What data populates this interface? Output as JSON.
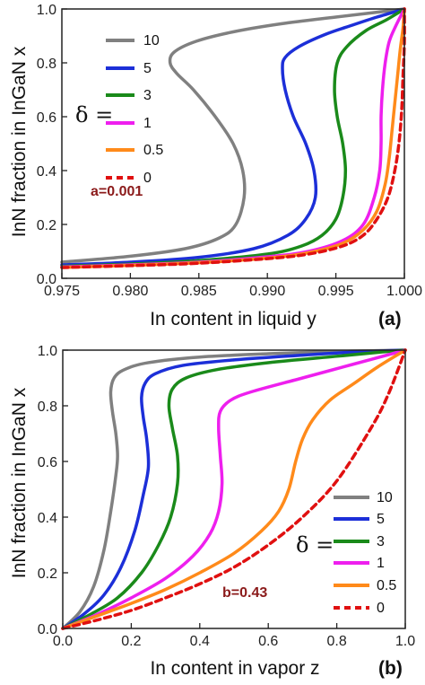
{
  "chart_data": [
    {
      "type": "line",
      "panel_label": "(a)",
      "xlabel": "In content in liquid y",
      "ylabel": "InN fraction in InGaN x",
      "xlim": [
        0.975,
        1.0
      ],
      "ylim": [
        0.0,
        1.0
      ],
      "xticks": [
        "0.975",
        "0.980",
        "0.985",
        "0.990",
        "0.995",
        "1.000"
      ],
      "yticks": [
        "0.0",
        "0.2",
        "0.4",
        "0.6",
        "0.8",
        "1.0"
      ],
      "legend_title": "δ =",
      "legend_position": "upper-left",
      "annotation": "a=0.001",
      "grid": false,
      "series": [
        {
          "name": "10",
          "color": "#808080",
          "dash": false,
          "points": [
            [
              0.975,
              0.06
            ],
            [
              0.98,
              0.082
            ],
            [
              0.984,
              0.11
            ],
            [
              0.9865,
              0.15
            ],
            [
              0.9877,
              0.2
            ],
            [
              0.9883,
              0.3
            ],
            [
              0.9882,
              0.4
            ],
            [
              0.9875,
              0.5
            ],
            [
              0.9862,
              0.6
            ],
            [
              0.9846,
              0.7
            ],
            [
              0.9834,
              0.76
            ],
            [
              0.9829,
              0.8
            ],
            [
              0.9832,
              0.84
            ],
            [
              0.9848,
              0.88
            ],
            [
              0.9875,
              0.915
            ],
            [
              0.991,
              0.945
            ],
            [
              0.995,
              0.97
            ],
            [
              0.998,
              0.988
            ],
            [
              1.0,
              1.0
            ]
          ]
        },
        {
          "name": "5",
          "color": "#1c2fd8",
          "dash": false,
          "points": [
            [
              0.975,
              0.05
            ],
            [
              0.98,
              0.06
            ],
            [
              0.985,
              0.078
            ],
            [
              0.989,
              0.11
            ],
            [
              0.9915,
              0.16
            ],
            [
              0.9928,
              0.22
            ],
            [
              0.9935,
              0.3
            ],
            [
              0.9934,
              0.4
            ],
            [
              0.9928,
              0.5
            ],
            [
              0.9919,
              0.6
            ],
            [
              0.9913,
              0.7
            ],
            [
              0.9911,
              0.78
            ],
            [
              0.9913,
              0.82
            ],
            [
              0.9923,
              0.86
            ],
            [
              0.9942,
              0.905
            ],
            [
              0.9962,
              0.94
            ],
            [
              0.998,
              0.97
            ],
            [
              1.0,
              1.0
            ]
          ]
        },
        {
          "name": "3",
          "color": "#1a8a1a",
          "dash": false,
          "points": [
            [
              0.975,
              0.045
            ],
            [
              0.98,
              0.053
            ],
            [
              0.985,
              0.066
            ],
            [
              0.99,
              0.09
            ],
            [
              0.9925,
              0.12
            ],
            [
              0.994,
              0.16
            ],
            [
              0.995,
              0.22
            ],
            [
              0.9955,
              0.3
            ],
            [
              0.9957,
              0.4
            ],
            [
              0.9955,
              0.5
            ],
            [
              0.9951,
              0.6
            ],
            [
              0.9949,
              0.7
            ],
            [
              0.9951,
              0.8
            ],
            [
              0.9958,
              0.86
            ],
            [
              0.9972,
              0.92
            ],
            [
              0.9987,
              0.96
            ],
            [
              1.0,
              1.0
            ]
          ]
        },
        {
          "name": "1",
          "color": "#ee1fee",
          "dash": false,
          "points": [
            [
              0.975,
              0.042
            ],
            [
              0.98,
              0.05
            ],
            [
              0.985,
              0.06
            ],
            [
              0.99,
              0.08
            ],
            [
              0.993,
              0.1
            ],
            [
              0.9955,
              0.14
            ],
            [
              0.997,
              0.2
            ],
            [
              0.9978,
              0.3
            ],
            [
              0.9982,
              0.4
            ],
            [
              0.9983,
              0.5
            ],
            [
              0.9983,
              0.6
            ],
            [
              0.9984,
              0.7
            ],
            [
              0.9986,
              0.8
            ],
            [
              0.9989,
              0.88
            ],
            [
              0.9994,
              0.94
            ],
            [
              1.0,
              1.0
            ]
          ]
        },
        {
          "name": "0.5",
          "color": "#ff8a1a",
          "dash": false,
          "points": [
            [
              0.975,
              0.04
            ],
            [
              0.98,
              0.048
            ],
            [
              0.985,
              0.058
            ],
            [
              0.99,
              0.075
            ],
            [
              0.993,
              0.095
            ],
            [
              0.9955,
              0.13
            ],
            [
              0.997,
              0.18
            ],
            [
              0.998,
              0.25
            ],
            [
              0.9986,
              0.35
            ],
            [
              0.9989,
              0.45
            ],
            [
              0.9991,
              0.55
            ],
            [
              0.9993,
              0.65
            ],
            [
              0.9995,
              0.75
            ],
            [
              0.9997,
              0.85
            ],
            [
              0.9999,
              0.93
            ],
            [
              1.0,
              1.0
            ]
          ]
        },
        {
          "name": "0",
          "color": "#e01010",
          "dash": true,
          "points": [
            [
              0.975,
              0.04
            ],
            [
              0.98,
              0.047
            ],
            [
              0.985,
              0.056
            ],
            [
              0.99,
              0.073
            ],
            [
              0.993,
              0.09
            ],
            [
              0.9955,
              0.12
            ],
            [
              0.997,
              0.16
            ],
            [
              0.998,
              0.22
            ],
            [
              0.9988,
              0.3
            ],
            [
              0.9993,
              0.4
            ],
            [
              0.9996,
              0.5
            ],
            [
              0.9998,
              0.62
            ],
            [
              0.9999,
              0.75
            ],
            [
              1.0,
              0.88
            ],
            [
              1.0,
              1.0
            ]
          ]
        }
      ]
    },
    {
      "type": "line",
      "panel_label": "(b)",
      "xlabel": "In content in vapor z",
      "ylabel": "InN fraction in InGaN x",
      "xlim": [
        0.0,
        1.0
      ],
      "ylim": [
        0.0,
        1.0
      ],
      "xticks": [
        "0.0",
        "0.2",
        "0.4",
        "0.6",
        "0.8",
        "1.0"
      ],
      "yticks": [
        "0.0",
        "0.2",
        "0.4",
        "0.6",
        "0.8",
        "1.0"
      ],
      "legend_title": "δ =",
      "legend_position": "lower-right",
      "annotation": "b=0.43",
      "grid": false,
      "series": [
        {
          "name": "10",
          "color": "#808080",
          "dash": false,
          "points": [
            [
              0,
              0
            ],
            [
              0.05,
              0.06
            ],
            [
              0.09,
              0.15
            ],
            [
              0.12,
              0.28
            ],
            [
              0.14,
              0.42
            ],
            [
              0.155,
              0.55
            ],
            [
              0.16,
              0.62
            ],
            [
              0.155,
              0.7
            ],
            [
              0.145,
              0.78
            ],
            [
              0.14,
              0.85
            ],
            [
              0.15,
              0.9
            ],
            [
              0.18,
              0.93
            ],
            [
              0.25,
              0.955
            ],
            [
              0.4,
              0.975
            ],
            [
              0.6,
              0.987
            ],
            [
              0.8,
              0.995
            ],
            [
              1.0,
              1.0
            ]
          ]
        },
        {
          "name": "5",
          "color": "#1c2fd8",
          "dash": false,
          "points": [
            [
              0,
              0
            ],
            [
              0.06,
              0.05
            ],
            [
              0.12,
              0.12
            ],
            [
              0.17,
              0.22
            ],
            [
              0.21,
              0.35
            ],
            [
              0.235,
              0.48
            ],
            [
              0.25,
              0.58
            ],
            [
              0.245,
              0.68
            ],
            [
              0.235,
              0.76
            ],
            [
              0.23,
              0.83
            ],
            [
              0.24,
              0.88
            ],
            [
              0.27,
              0.915
            ],
            [
              0.35,
              0.945
            ],
            [
              0.5,
              0.965
            ],
            [
              0.7,
              0.982
            ],
            [
              0.85,
              0.993
            ],
            [
              1.0,
              1.0
            ]
          ]
        },
        {
          "name": "3",
          "color": "#1a8a1a",
          "dash": false,
          "points": [
            [
              0,
              0
            ],
            [
              0.08,
              0.05
            ],
            [
              0.16,
              0.11
            ],
            [
              0.23,
              0.2
            ],
            [
              0.28,
              0.3
            ],
            [
              0.315,
              0.4
            ],
            [
              0.335,
              0.52
            ],
            [
              0.335,
              0.62
            ],
            [
              0.32,
              0.72
            ],
            [
              0.31,
              0.8
            ],
            [
              0.32,
              0.86
            ],
            [
              0.36,
              0.9
            ],
            [
              0.45,
              0.93
            ],
            [
              0.6,
              0.955
            ],
            [
              0.8,
              0.978
            ],
            [
              0.92,
              0.992
            ],
            [
              1.0,
              1.0
            ]
          ]
        },
        {
          "name": "1",
          "color": "#ee1fee",
          "dash": false,
          "points": [
            [
              0,
              0
            ],
            [
              0.1,
              0.05
            ],
            [
              0.2,
              0.11
            ],
            [
              0.3,
              0.18
            ],
            [
              0.38,
              0.26
            ],
            [
              0.43,
              0.34
            ],
            [
              0.455,
              0.42
            ],
            [
              0.465,
              0.52
            ],
            [
              0.46,
              0.62
            ],
            [
              0.455,
              0.72
            ],
            [
              0.46,
              0.78
            ],
            [
              0.49,
              0.82
            ],
            [
              0.55,
              0.85
            ],
            [
              0.7,
              0.9
            ],
            [
              0.85,
              0.95
            ],
            [
              1.0,
              1.0
            ]
          ]
        },
        {
          "name": "0.5",
          "color": "#ff8a1a",
          "dash": false,
          "points": [
            [
              0,
              0
            ],
            [
              0.1,
              0.045
            ],
            [
              0.2,
              0.09
            ],
            [
              0.3,
              0.14
            ],
            [
              0.4,
              0.2
            ],
            [
              0.5,
              0.27
            ],
            [
              0.58,
              0.35
            ],
            [
              0.63,
              0.42
            ],
            [
              0.66,
              0.5
            ],
            [
              0.68,
              0.6
            ],
            [
              0.7,
              0.68
            ],
            [
              0.73,
              0.75
            ],
            [
              0.78,
              0.82
            ],
            [
              0.85,
              0.88
            ],
            [
              0.92,
              0.94
            ],
            [
              1.0,
              1.0
            ]
          ]
        },
        {
          "name": "0",
          "color": "#e01010",
          "dash": true,
          "points": [
            [
              0,
              0
            ],
            [
              0.1,
              0.03
            ],
            [
              0.2,
              0.065
            ],
            [
              0.3,
              0.11
            ],
            [
              0.4,
              0.16
            ],
            [
              0.5,
              0.22
            ],
            [
              0.6,
              0.3
            ],
            [
              0.7,
              0.4
            ],
            [
              0.8,
              0.53
            ],
            [
              0.9,
              0.72
            ],
            [
              0.95,
              0.84
            ],
            [
              1.0,
              1.0
            ]
          ]
        }
      ]
    }
  ]
}
